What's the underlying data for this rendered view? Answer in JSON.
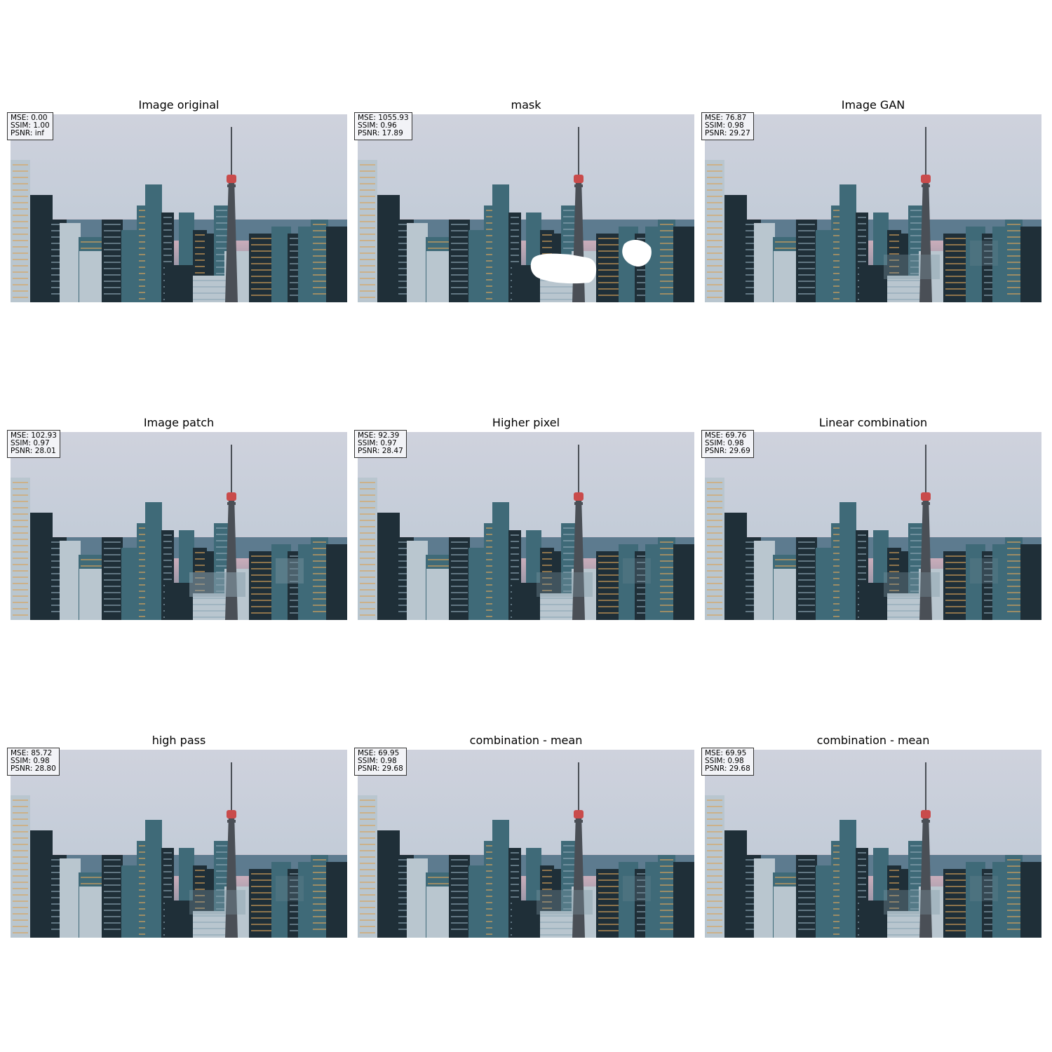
{
  "panels": [
    {
      "title": "Image original",
      "mse": "MSE: 0.00",
      "ssim": "SSIM: 1.00",
      "psnr": "PSNR: inf",
      "variant": "original"
    },
    {
      "title": "mask",
      "mse": "MSE: 1055.93",
      "ssim": "SSIM: 0.96",
      "psnr": "PSNR: 17.89",
      "variant": "mask"
    },
    {
      "title": "Image GAN",
      "mse": "MSE: 76.87",
      "ssim": "SSIM: 0.98",
      "psnr": "PSNR: 29.27",
      "variant": "inpaint"
    },
    {
      "title": "Image patch",
      "mse": "MSE: 102.93",
      "ssim": "SSIM: 0.97",
      "psnr": "PSNR: 28.01",
      "variant": "patch"
    },
    {
      "title": "Higher pixel",
      "mse": "MSE: 92.39",
      "ssim": "SSIM: 0.97",
      "psnr": "PSNR: 28.47",
      "variant": "inpaint"
    },
    {
      "title": "Linear combination",
      "mse": "MSE: 69.76",
      "ssim": "SSIM: 0.98",
      "psnr": "PSNR: 29.69",
      "variant": "inpaint"
    },
    {
      "title": "high pass",
      "mse": "MSE: 85.72",
      "ssim": "SSIM: 0.98",
      "psnr": "PSNR: 28.80",
      "variant": "inpaint"
    },
    {
      "title": "combination - mean",
      "mse": "MSE: 69.95",
      "ssim": "SSIM: 0.98",
      "psnr": "PSNR: 29.68",
      "variant": "inpaint"
    },
    {
      "title": "combination - mean",
      "mse": "MSE: 69.95",
      "ssim": "SSIM: 0.98",
      "psnr": "PSNR: 29.68",
      "variant": "inpaint"
    }
  ],
  "colors": {
    "sky_top": "#cfd2dd",
    "sky_mid": "#c3ccd8",
    "sky_pink": "#e2b8c4",
    "water": "#5d7b8f",
    "building_dark": "#1f2f38",
    "building_teal": "#3f6a78",
    "building_light": "#b9c6cf",
    "tower": "#4a4f56",
    "tower_ring": "#c94b4b",
    "mask_white": "#ffffff"
  }
}
